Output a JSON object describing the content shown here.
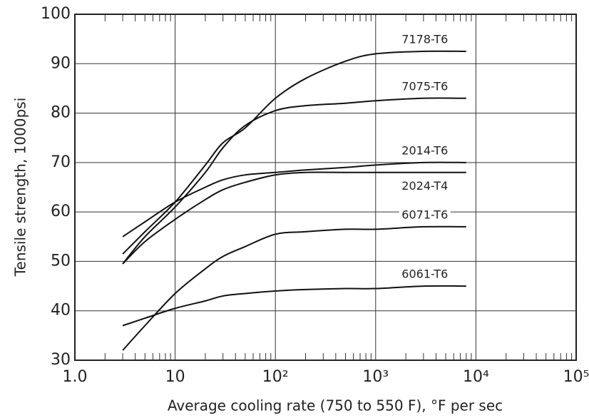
{
  "chart_data": {
    "type": "line",
    "x_label": "Average cooling rate (750 to 550 F), °F per sec",
    "y_label": "Tensile strength, 1000psi",
    "x_scale": "log",
    "grid": true,
    "xlim": [
      1,
      100000
    ],
    "xticks": [
      {
        "value": 1,
        "label": "1.0"
      },
      10,
      {
        "value": 100,
        "label": "10²"
      },
      {
        "value": 1000,
        "label": "10³"
      },
      {
        "value": 10000,
        "label": "10⁴"
      },
      {
        "value": 100000,
        "label": "10⁵"
      }
    ],
    "ylim": [
      30,
      100
    ],
    "yticks": [
      30,
      40,
      50,
      60,
      70,
      80,
      90,
      100
    ],
    "x": [
      3,
      5,
      10,
      20,
      30,
      50,
      100,
      200,
      500,
      1000,
      3000,
      8000
    ],
    "series": [
      {
        "name": "7178-T6",
        "color": "#111111",
        "values": [
          51.5,
          56,
          62,
          69.5,
          74,
          77,
          83,
          87,
          90.5,
          92,
          92.5,
          92.5
        ]
      },
      {
        "name": "7075-T6",
        "color": "#111111",
        "values": [
          49.5,
          55,
          61,
          68,
          73,
          77.5,
          80.5,
          81.5,
          82,
          82.5,
          83,
          83
        ]
      },
      {
        "name": "2014-T6",
        "color": "#111111",
        "values": [
          55,
          58,
          62,
          65,
          66.5,
          67.5,
          68,
          68.5,
          69,
          69.5,
          70,
          70
        ]
      },
      {
        "name": "2024-T4",
        "color": "#111111",
        "values": [
          49.5,
          54,
          58.5,
          62.5,
          64.5,
          66,
          67.5,
          68,
          68,
          68,
          68,
          68
        ]
      },
      {
        "name": "6071-T6",
        "color": "#111111",
        "values": [
          32,
          37,
          43.5,
          48.5,
          51,
          53,
          55.5,
          56,
          56.5,
          56.5,
          57,
          57
        ]
      },
      {
        "name": "6061-T6",
        "color": "#111111",
        "values": [
          37,
          38.5,
          40.5,
          42,
          43,
          43.5,
          44,
          44.3,
          44.5,
          44.5,
          45,
          45
        ]
      }
    ]
  }
}
